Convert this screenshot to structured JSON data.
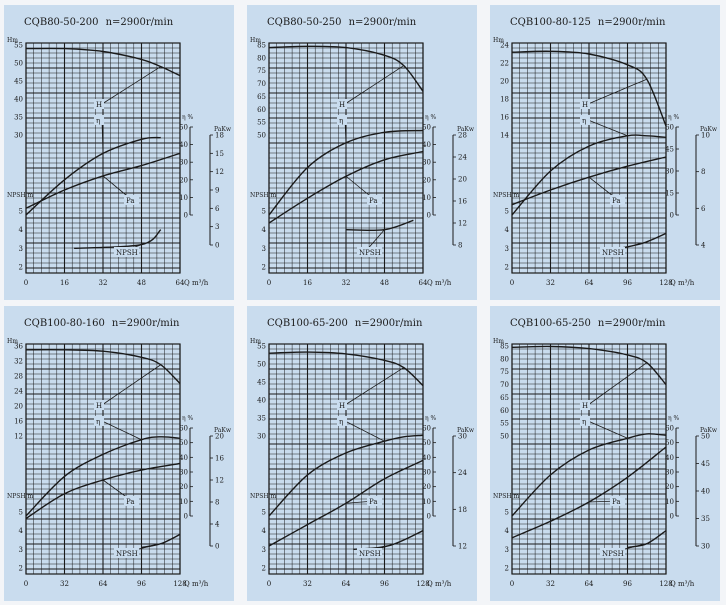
{
  "colors": {
    "panel_bg": "#c9dcee",
    "page_bg": "#f3f5f8",
    "ink": "#1a1a1a",
    "grid": "#1a1a1a"
  },
  "chart_data": [
    {
      "type": "line",
      "title": "CQB80-50-200",
      "speed": "n=2900r/min",
      "xlabel": "Q m³/h",
      "x_ticks": [
        "0",
        "16",
        "32",
        "48",
        "64"
      ],
      "xlim": [
        0,
        64
      ],
      "head_axis": {
        "label": "Hm",
        "ticks": [
          "55",
          "50",
          "45",
          "40",
          "35",
          "30"
        ],
        "lim": [
          30,
          55
        ]
      },
      "eta_axis": {
        "label": "η %",
        "ticks": [
          "50",
          "40",
          "30",
          "20",
          "10",
          "0"
        ],
        "lim": [
          0,
          50
        ]
      },
      "pa_axis": {
        "label": "PaKw",
        "ticks": [
          "18",
          "15",
          "12",
          "9",
          "6",
          "3",
          "0"
        ],
        "lim": [
          0,
          18
        ]
      },
      "npsh_axis": {
        "label": "NPSH m",
        "ticks": [
          "5",
          "4",
          "3",
          "2"
        ],
        "lim": [
          2,
          5
        ]
      },
      "curve_labels": {
        "head": "H",
        "eta": "η",
        "pa": "Pa",
        "npsh": "NPSH"
      },
      "series": [
        {
          "name": "H",
          "x": [
            0,
            16,
            32,
            48,
            56,
            64
          ],
          "y": [
            54,
            54,
            53.2,
            51,
            49,
            46.5
          ]
        },
        {
          "name": "η",
          "x": [
            0,
            16,
            32,
            48,
            56
          ],
          "y": [
            0,
            20,
            35,
            43,
            44
          ]
        },
        {
          "name": "Pa",
          "x": [
            0,
            16,
            32,
            48,
            64
          ],
          "y": [
            6,
            9,
            11.3,
            13,
            15
          ]
        },
        {
          "name": "NPSH",
          "x": [
            20,
            48,
            56
          ],
          "y": [
            3,
            3.2,
            4
          ]
        }
      ]
    },
    {
      "type": "line",
      "title": "CQB80-50-250",
      "speed": "n=2900r/min",
      "xlabel": "Q m³/h",
      "x_ticks": [
        "0",
        "16",
        "32",
        "48",
        "64"
      ],
      "xlim": [
        0,
        64
      ],
      "head_axis": {
        "label": "Hm",
        "ticks": [
          "85",
          "80",
          "75",
          "70",
          "65",
          "60",
          "55",
          "50"
        ],
        "lim": [
          50,
          85
        ]
      },
      "eta_axis": {
        "label": "η %",
        "ticks": [
          "50",
          "40",
          "30",
          "20",
          "10",
          "0"
        ],
        "lim": [
          0,
          50
        ]
      },
      "pa_axis": {
        "label": "PaKw",
        "ticks": [
          "28",
          "24",
          "20",
          "16",
          "12",
          "8"
        ],
        "lim": [
          8,
          28
        ]
      },
      "npsh_axis": {
        "label": "NPSH m",
        "ticks": [
          "5",
          "4",
          "3",
          "2"
        ],
        "lim": [
          2,
          5
        ]
      },
      "curve_labels": {
        "head": "H",
        "eta": "η",
        "pa": "Pa",
        "npsh": "NPSH"
      },
      "series": [
        {
          "name": "H",
          "x": [
            0,
            16,
            32,
            48,
            56,
            64
          ],
          "y": [
            84,
            84.5,
            84,
            81,
            77,
            67
          ]
        },
        {
          "name": "η",
          "x": [
            0,
            16,
            32,
            48,
            64
          ],
          "y": [
            0,
            27,
            41,
            47,
            48
          ]
        },
        {
          "name": "Pa",
          "x": [
            0,
            16,
            32,
            48,
            64
          ],
          "y": [
            12,
            16.5,
            20.5,
            23.5,
            25
          ]
        },
        {
          "name": "NPSH",
          "x": [
            32,
            48,
            60
          ],
          "y": [
            4,
            4,
            4.5
          ]
        }
      ]
    },
    {
      "type": "line",
      "title": "CQB100-80-125",
      "speed": "n=2900r/min",
      "xlabel": "Q m³/h",
      "x_ticks": [
        "0",
        "32",
        "64",
        "96",
        "128"
      ],
      "xlim": [
        0,
        128
      ],
      "head_axis": {
        "label": "Hm",
        "ticks": [
          "24",
          "22",
          "20",
          "18",
          "16",
          "14"
        ],
        "lim": [
          14,
          24
        ]
      },
      "eta_axis": {
        "label": "η %",
        "ticks": [
          "60",
          "45",
          "30",
          "15",
          "0"
        ],
        "lim": [
          0,
          60
        ]
      },
      "pa_axis": {
        "label": "PaKw",
        "ticks": [
          "10",
          "8",
          "6",
          "4"
        ],
        "lim": [
          4,
          10
        ]
      },
      "npsh_axis": {
        "label": "NPSH m",
        "ticks": [
          "5",
          "4",
          "3",
          "2"
        ],
        "lim": [
          2,
          5
        ]
      },
      "curve_labels": {
        "head": "H",
        "eta": "η",
        "pa": "Pa",
        "npsh": "NPSH"
      },
      "series": [
        {
          "name": "H",
          "x": [
            0,
            32,
            64,
            96,
            112,
            128
          ],
          "y": [
            23.2,
            23.3,
            23,
            21.8,
            20.2,
            15
          ]
        },
        {
          "name": "η",
          "x": [
            0,
            32,
            64,
            96,
            112,
            128
          ],
          "y": [
            0,
            30,
            47,
            54,
            54,
            53
          ]
        },
        {
          "name": "Pa",
          "x": [
            0,
            32,
            64,
            96,
            128
          ],
          "y": [
            6.2,
            7,
            7.7,
            8.3,
            8.8
          ]
        },
        {
          "name": "NPSH",
          "x": [
            90,
            110,
            128
          ],
          "y": [
            3,
            3.3,
            3.8
          ]
        }
      ]
    },
    {
      "type": "line",
      "title": "CQB100-80-160",
      "speed": "n=2900r/min",
      "xlabel": "Q m³/h",
      "x_ticks": [
        "0",
        "32",
        "64",
        "96",
        "128"
      ],
      "xlim": [
        0,
        128
      ],
      "head_axis": {
        "label": "Hm",
        "ticks": [
          "36",
          "32",
          "28",
          "24",
          "20",
          "16",
          "12"
        ],
        "lim": [
          12,
          36
        ]
      },
      "eta_axis": {
        "label": "η %",
        "ticks": [
          "60",
          "50",
          "40",
          "30",
          "20",
          "10",
          "0"
        ],
        "lim": [
          0,
          60
        ]
      },
      "pa_axis": {
        "label": "PaKw",
        "ticks": [
          "20",
          "16",
          "12",
          "8",
          "4",
          "0"
        ],
        "lim": [
          0,
          20
        ]
      },
      "npsh_axis": {
        "label": "NPSH m",
        "ticks": [
          "5",
          "4",
          "3",
          "2"
        ],
        "lim": [
          2,
          5
        ]
      },
      "curve_labels": {
        "head": "H",
        "eta": "η",
        "pa": "Pa",
        "npsh": "NPSH"
      },
      "series": [
        {
          "name": "H",
          "x": [
            0,
            32,
            64,
            96,
            112,
            128
          ],
          "y": [
            35,
            35,
            34.6,
            33,
            31,
            26
          ]
        },
        {
          "name": "η",
          "x": [
            0,
            32,
            64,
            96,
            112,
            128
          ],
          "y": [
            0,
            27,
            42,
            52,
            54,
            53
          ]
        },
        {
          "name": "Pa",
          "x": [
            0,
            32,
            64,
            96,
            128
          ],
          "y": [
            5,
            9.5,
            12,
            13.8,
            15
          ]
        },
        {
          "name": "NPSH",
          "x": [
            96,
            112,
            128
          ],
          "y": [
            3.1,
            3.3,
            3.8
          ]
        }
      ]
    },
    {
      "type": "line",
      "title": "CQB100-65-200",
      "speed": "n=2900r/min",
      "xlabel": "Q m³/h",
      "x_ticks": [
        "0",
        "32",
        "64",
        "96",
        "128"
      ],
      "xlim": [
        0,
        128
      ],
      "head_axis": {
        "label": "Hm",
        "ticks": [
          "55",
          "50",
          "45",
          "40",
          "35",
          "30"
        ],
        "lim": [
          30,
          55
        ]
      },
      "eta_axis": {
        "label": "η %",
        "ticks": [
          "60",
          "50",
          "40",
          "30",
          "20",
          "10",
          "0"
        ],
        "lim": [
          0,
          60
        ]
      },
      "pa_axis": {
        "label": "PaKw",
        "ticks": [
          "30",
          "24",
          "18",
          "12"
        ],
        "lim": [
          12,
          30
        ]
      },
      "npsh_axis": {
        "label": "NPSH m",
        "ticks": [
          "5",
          "4",
          "3",
          "2"
        ],
        "lim": [
          2,
          5
        ]
      },
      "curve_labels": {
        "head": "H",
        "eta": "η",
        "pa": "Pa",
        "npsh": "NPSH"
      },
      "series": [
        {
          "name": "H",
          "x": [
            0,
            32,
            64,
            96,
            112,
            128
          ],
          "y": [
            53,
            53.3,
            52.8,
            51,
            49,
            44
          ]
        },
        {
          "name": "η",
          "x": [
            0,
            32,
            64,
            96,
            112,
            128
          ],
          "y": [
            0,
            28,
            43,
            51,
            54,
            55
          ]
        },
        {
          "name": "Pa",
          "x": [
            0,
            32,
            64,
            96,
            128
          ],
          "y": [
            12,
            15.5,
            19,
            23,
            26
          ]
        },
        {
          "name": "NPSH",
          "x": [
            70,
            100,
            128
          ],
          "y": [
            3,
            3.2,
            4
          ]
        }
      ]
    },
    {
      "type": "line",
      "title": "CQB100-65-250",
      "speed": "n=2900r/min",
      "xlabel": "Q m³/h",
      "x_ticks": [
        "0",
        "32",
        "64",
        "96",
        "128"
      ],
      "xlim": [
        0,
        128
      ],
      "head_axis": {
        "label": "Hm",
        "ticks": [
          "85",
          "80",
          "75",
          "70",
          "65",
          "60",
          "55",
          "50"
        ],
        "lim": [
          50,
          85
        ]
      },
      "eta_axis": {
        "label": "η %",
        "ticks": [
          "60",
          "50",
          "40",
          "30",
          "20",
          "10",
          "0"
        ],
        "lim": [
          0,
          60
        ]
      },
      "pa_axis": {
        "label": "PaKw",
        "ticks": [
          "50",
          "45",
          "40",
          "35",
          "30"
        ],
        "lim": [
          30,
          50
        ]
      },
      "npsh_axis": {
        "label": "NPSH m",
        "ticks": [
          "5",
          "4",
          "3",
          "2"
        ],
        "lim": [
          2,
          5
        ]
      },
      "curve_labels": {
        "head": "H",
        "eta": "η",
        "pa": "Pa",
        "npsh": "NPSH"
      },
      "series": [
        {
          "name": "H",
          "x": [
            0,
            32,
            64,
            96,
            112,
            128
          ],
          "y": [
            84.5,
            84.8,
            84,
            81.5,
            78.5,
            70
          ]
        },
        {
          "name": "η",
          "x": [
            0,
            32,
            64,
            96,
            112,
            128
          ],
          "y": [
            0,
            28,
            45,
            53,
            56,
            55
          ]
        },
        {
          "name": "Pa",
          "x": [
            0,
            32,
            64,
            96,
            128
          ],
          "y": [
            31.5,
            34.5,
            38,
            42.5,
            48
          ]
        },
        {
          "name": "NPSH",
          "x": [
            96,
            112,
            128
          ],
          "y": [
            3.1,
            3.3,
            4
          ]
        }
      ]
    }
  ]
}
